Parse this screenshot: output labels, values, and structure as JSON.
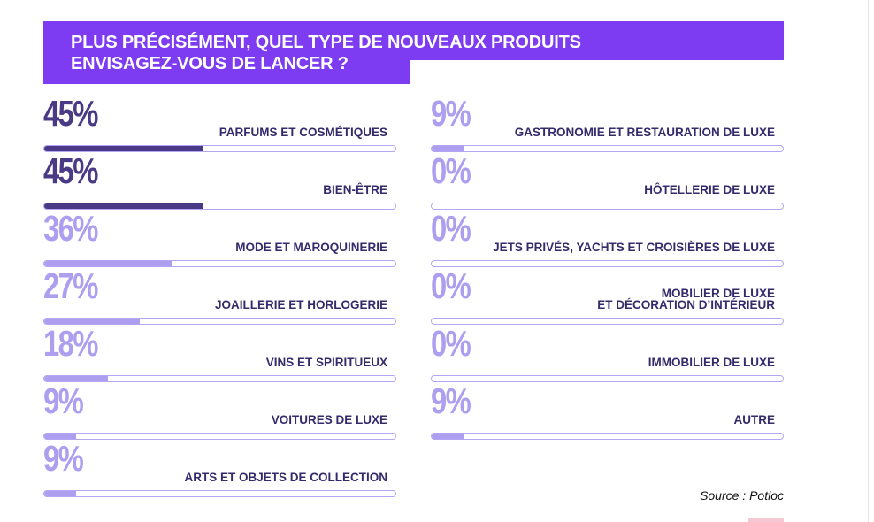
{
  "title": "PLUS PRÉCISÉMENT, QUEL TYPE DE NOUVEAUX PRODUITS\nENVISAGEZ-VOUS DE LANCER ?",
  "source": "Source : Potloc",
  "colors": {
    "title_band": "#7d3cf2",
    "strong": "#4a3a86",
    "light": "#ae9ef0",
    "track_border": "#b4a5f5",
    "label": "#352a6b"
  },
  "chart_data": {
    "type": "bar",
    "orientation": "horizontal",
    "value_unit": "%",
    "xlim": [
      0,
      100
    ],
    "categories": [
      "PARFUMS ET COSMÉTIQUES",
      "BIEN-ÊTRE",
      "MODE ET MAROQUINERIE",
      "JOAILLERIE ET HORLOGERIE",
      "VINS ET SPIRITUEUX",
      "VOITURES DE LUXE",
      "ARTS ET OBJETS DE COLLECTION",
      "GASTRONOMIE ET RESTAURATION DE LUXE",
      "HÔTELLERIE DE LUXE",
      "JETS PRIVÉS, YACHTS ET CROISIÈRES DE LUXE",
      "MOBILIER DE LUXE\nET DÉCORATION D’INTÉRIEUR",
      "IMMOBILIER DE LUXE",
      "AUTRE"
    ],
    "values": [
      45,
      45,
      36,
      27,
      18,
      9,
      9,
      9,
      0,
      0,
      0,
      0,
      9
    ],
    "labels": [
      "45%",
      "45%",
      "36%",
      "27%",
      "18%",
      "9%",
      "9%",
      "9%",
      "0%",
      "0%",
      "0%",
      "0%",
      "9%"
    ],
    "emphasis": [
      "strong",
      "strong",
      "light",
      "light",
      "light",
      "light",
      "light",
      "light",
      "light",
      "light",
      "light",
      "light",
      "light"
    ]
  }
}
